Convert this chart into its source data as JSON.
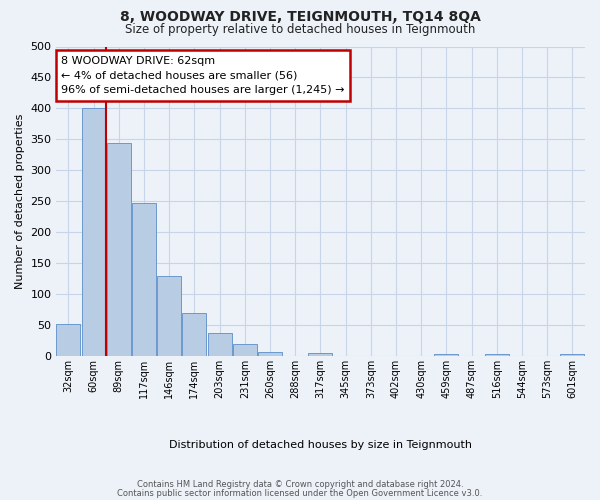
{
  "title": "8, WOODWAY DRIVE, TEIGNMOUTH, TQ14 8QA",
  "subtitle": "Size of property relative to detached houses in Teignmouth",
  "bar_labels": [
    "32sqm",
    "60sqm",
    "89sqm",
    "117sqm",
    "146sqm",
    "174sqm",
    "203sqm",
    "231sqm",
    "260sqm",
    "288sqm",
    "317sqm",
    "345sqm",
    "373sqm",
    "402sqm",
    "430sqm",
    "459sqm",
    "487sqm",
    "516sqm",
    "544sqm",
    "573sqm",
    "601sqm"
  ],
  "bar_values": [
    52,
    400,
    345,
    247,
    130,
    70,
    37,
    20,
    7,
    0,
    5,
    0,
    0,
    0,
    0,
    4,
    0,
    3,
    0,
    0,
    3
  ],
  "bar_color": "#b8cce4",
  "bar_edge_color": "#5b8fc9",
  "vline_color": "#c00000",
  "vline_x_index": 1,
  "ylim": [
    0,
    500
  ],
  "yticks": [
    0,
    50,
    100,
    150,
    200,
    250,
    300,
    350,
    400,
    450,
    500
  ],
  "ylabel": "Number of detached properties",
  "xlabel": "Distribution of detached houses by size in Teignmouth",
  "annotation_title": "8 WOODWAY DRIVE: 62sqm",
  "annotation_line1": "← 4% of detached houses are smaller (56)",
  "annotation_line2": "96% of semi-detached houses are larger (1,245) →",
  "annotation_box_color": "#c00000",
  "grid_color": "#c8d4e8",
  "bg_color": "#edf2f9",
  "plot_bg_color": "#edf2f9",
  "footer_line1": "Contains HM Land Registry data © Crown copyright and database right 2024.",
  "footer_line2": "Contains public sector information licensed under the Open Government Licence v3.0."
}
